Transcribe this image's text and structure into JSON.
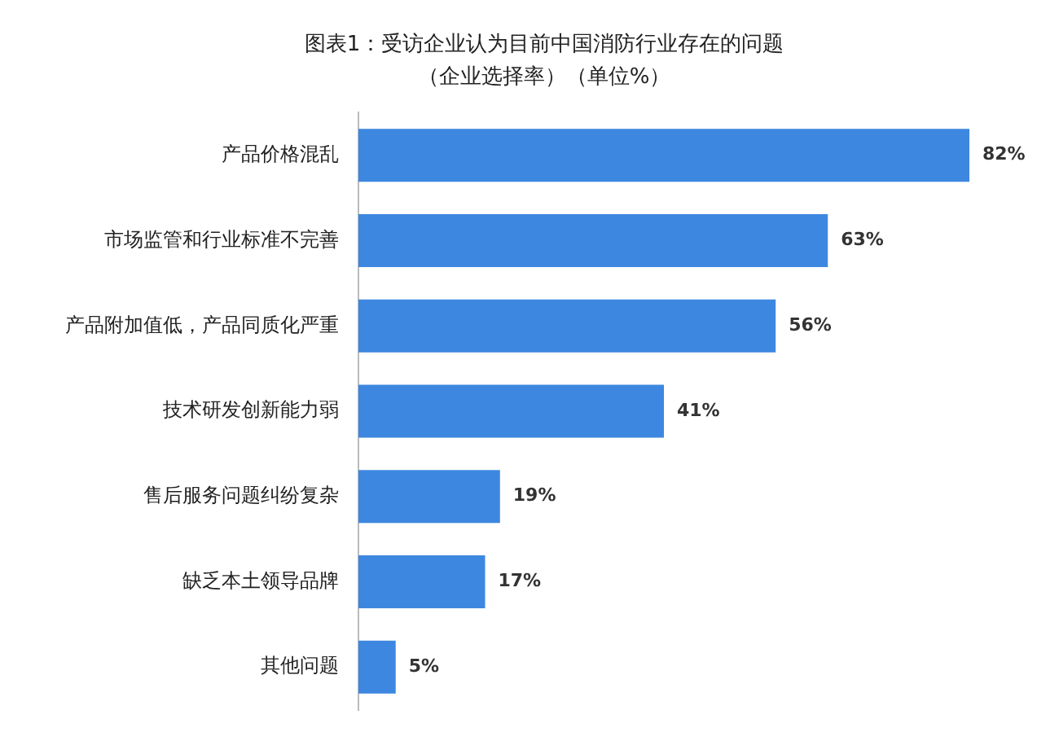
{
  "chart_data": {
    "type": "bar",
    "orientation": "horizontal",
    "relative": false,
    "title": "图表1：受访企业认为目前中国消防行业存在的问题",
    "subtitle": "（企业选择率）（单位%）",
    "categories": [
      "产品价格混乱",
      "市场监管和行业标准不完善",
      "产品附加值低，产品同质化严重",
      "技术研发创新能力弱",
      "售后服务问题纠纷复杂",
      "缺乏本土领导品牌",
      "其他问题"
    ],
    "values": [
      82,
      63,
      56,
      41,
      19,
      17,
      5
    ],
    "value_labels": [
      "82%",
      "63%",
      "56%",
      "41%",
      "19%",
      "17%",
      "5%"
    ],
    "color": "#3d87e0",
    "legend": false
  }
}
